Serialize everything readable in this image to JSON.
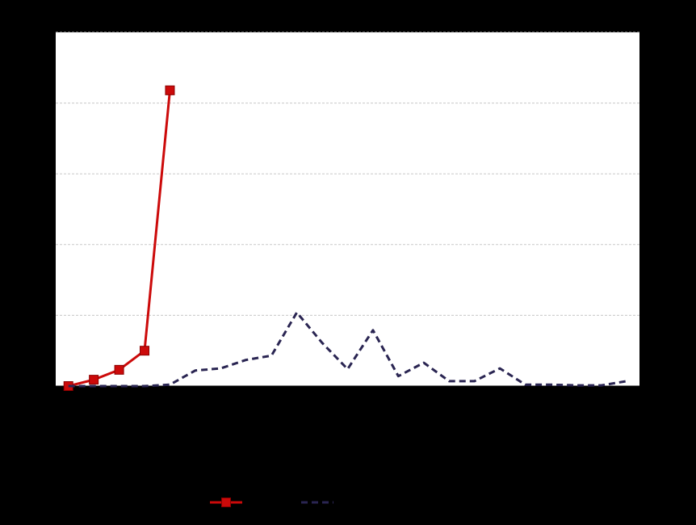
{
  "chart_data": {
    "type": "line",
    "categories": [
      null,
      null,
      null,
      null,
      null,
      null,
      null,
      null,
      null,
      null,
      null,
      null,
      null,
      null,
      null,
      null,
      null,
      null,
      null,
      null,
      null,
      null,
      null
    ],
    "series": [
      {
        "color": "#cc0a0a",
        "marker": "square",
        "dash": false,
        "values": [
          0,
          0.09,
          0.23,
          0.5,
          4.18,
          null,
          null,
          null,
          null,
          null,
          null,
          null,
          null,
          null,
          null,
          null,
          null,
          null,
          null,
          null,
          null,
          null,
          null
        ]
      },
      {
        "color": "#2a2552",
        "marker": null,
        "dash": true,
        "values": [
          0,
          0,
          0,
          0,
          0.02,
          0.22,
          0.25,
          0.37,
          0.43,
          1.04,
          0.61,
          0.24,
          0.79,
          0.14,
          0.33,
          0.07,
          0.07,
          0.25,
          0.02,
          0.02,
          0.01,
          0.01,
          0.07
        ]
      }
    ],
    "ylim": [
      0,
      5
    ],
    "yticks": [
      0,
      1,
      2,
      3,
      4,
      5
    ],
    "grid": true
  }
}
